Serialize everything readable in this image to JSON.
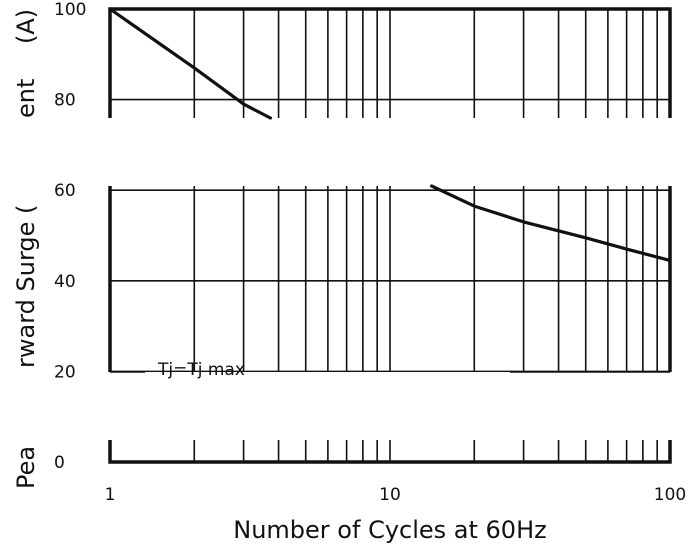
{
  "chart_data": {
    "type": "line",
    "title": "",
    "xlabel": "Number of Cycles at 60Hz",
    "ylabel": "Peak Forward Surge Current (A)",
    "ylabel_visible_fragments": [
      "Pea",
      "rward Surge (",
      "ent",
      "(A)"
    ],
    "xscale": "log",
    "xlim": [
      1,
      100
    ],
    "ylim": [
      0,
      100
    ],
    "x_ticks": [
      1,
      10,
      100
    ],
    "x_tick_labels": [
      "1",
      "10",
      "100"
    ],
    "y_ticks": [
      0,
      20,
      40,
      60,
      80,
      100
    ],
    "y_tick_labels": [
      "0",
      "20",
      "40",
      "60",
      "80",
      "100"
    ],
    "grid": true,
    "annotations": [
      {
        "text": "Tj=Tj max",
        "x": 1.7,
        "y": 20
      }
    ],
    "series": [
      {
        "color": "#111111",
        "points": [
          {
            "x": 1,
            "y": 100
          },
          {
            "x": 2,
            "y": 87
          },
          {
            "x": 3,
            "y": 79
          },
          {
            "x": 4,
            "y": 75
          },
          {
            "x": 14,
            "y": 61
          },
          {
            "x": 20,
            "y": 56.5
          },
          {
            "x": 30,
            "y": 53
          },
          {
            "x": 50,
            "y": 49.5
          },
          {
            "x": 70,
            "y": 47
          },
          {
            "x": 100,
            "y": 44.5
          }
        ]
      }
    ]
  }
}
